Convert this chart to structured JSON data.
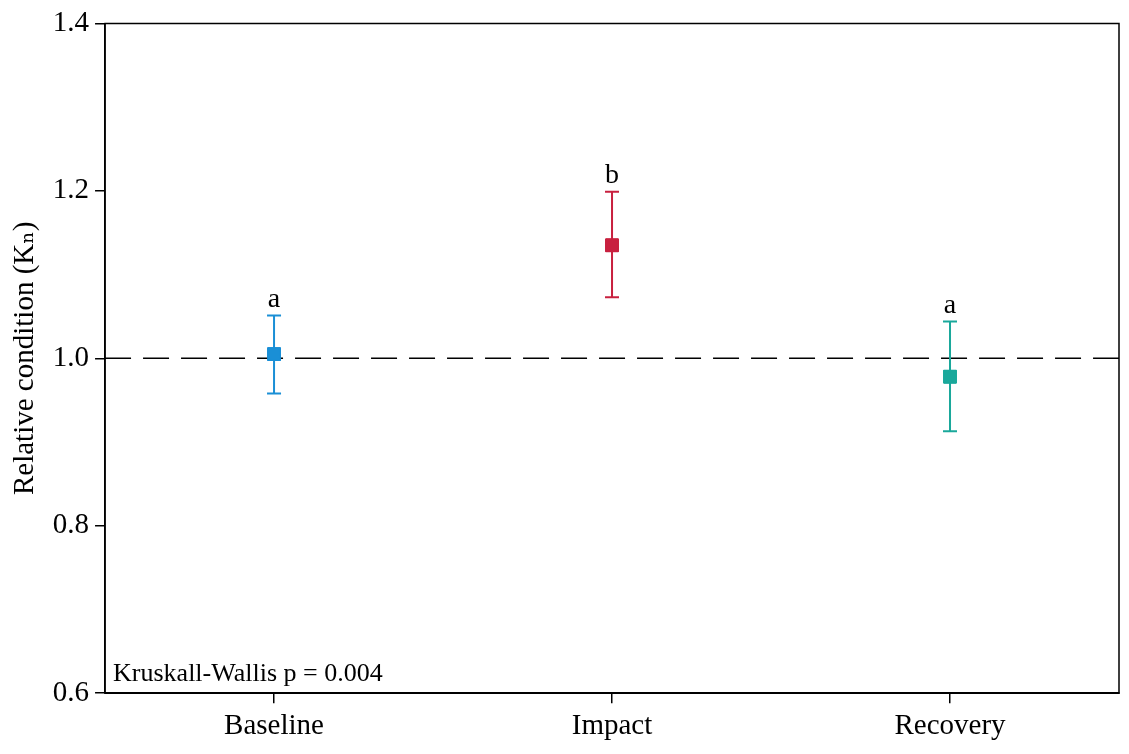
{
  "chart_data": {
    "type": "scatter",
    "ylabel": "Relative condition (Kₙ)",
    "categories": [
      "Baseline",
      "Impact",
      "Recovery"
    ],
    "values": [
      1.005,
      1.135,
      0.978
    ],
    "colors": [
      "#1a8fd6",
      "#c8203f",
      "#1aa89b"
    ],
    "errors": [
      [
        0.958,
        1.051
      ],
      [
        1.073,
        1.199
      ],
      [
        0.913,
        1.044
      ]
    ],
    "marker": "square",
    "grid": false,
    "legend": false,
    "ylim": [
      0.6,
      1.4
    ],
    "yticks": [
      {
        "value": 0.6,
        "label": "0.6"
      },
      {
        "value": 0.8,
        "label": "0.8"
      },
      {
        "value": 1,
        "label": "1.0"
      },
      {
        "value": 1.2,
        "label": "1.2"
      },
      {
        "value": 1.4,
        "label": "1.4"
      }
    ],
    "ref_lines": [
      {
        "axis": "y",
        "value": 1,
        "line_style": "dashed",
        "color": "#000000"
      }
    ],
    "annotations": [
      {
        "text": "a",
        "x": "Baseline",
        "y": 1.051
      },
      {
        "text": "b",
        "x": "Impact",
        "y": 1.199
      },
      {
        "text": "a",
        "x": "Recovery",
        "y": 1.044
      },
      "Kruskall-Wallis p = 0.004"
    ]
  }
}
